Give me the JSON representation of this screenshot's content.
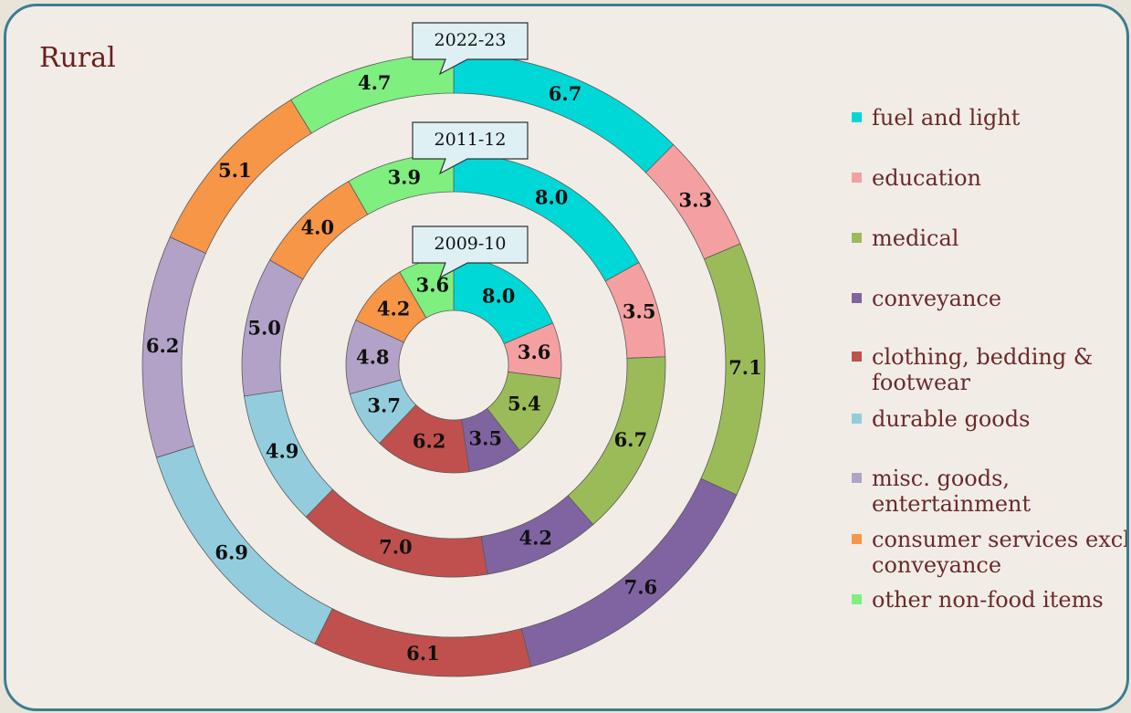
{
  "chart_data": {
    "type": "doughnut",
    "title": "Rural",
    "categories": [
      "fuel and light",
      "education",
      "medical",
      "conveyance",
      "clothing, bedding & footwear",
      "durable goods",
      "misc. goods, entertainment",
      "consumer services excl. conveyance",
      "other non-food items"
    ],
    "colors": [
      "#00d8d8",
      "#f4a0a0",
      "#9bbb59",
      "#8064a2",
      "#c0504d",
      "#93cddd",
      "#b3a2c7",
      "#f79646",
      "#7fef7f"
    ],
    "series": [
      {
        "name": "2009-10",
        "values": [
          8.0,
          3.6,
          5.4,
          3.5,
          6.2,
          3.7,
          4.8,
          4.2,
          3.6
        ],
        "value_labels": [
          "8.0",
          "3.6",
          "5.4",
          "3.5",
          "6.2",
          "3.7",
          "4.8",
          "4.2",
          "3.6"
        ]
      },
      {
        "name": "2011-12",
        "values": [
          8.0,
          3.5,
          6.7,
          4.2,
          7.0,
          4.9,
          5.0,
          4.0,
          3.9
        ],
        "value_labels": [
          "8.0",
          "3.5",
          "6.7",
          "4.2",
          "7.0",
          "4.9",
          "5.0",
          "4.0",
          "3.9"
        ]
      },
      {
        "name": "2022-23",
        "values": [
          6.7,
          3.3,
          7.1,
          7.6,
          6.1,
          6.9,
          6.2,
          5.1,
          4.7
        ],
        "value_labels": [
          "6.7",
          "3.3",
          "7.1",
          "7.6",
          "6.1",
          "6.9",
          "6.2",
          "5.1",
          "4.7"
        ]
      }
    ],
    "legend": "right"
  }
}
